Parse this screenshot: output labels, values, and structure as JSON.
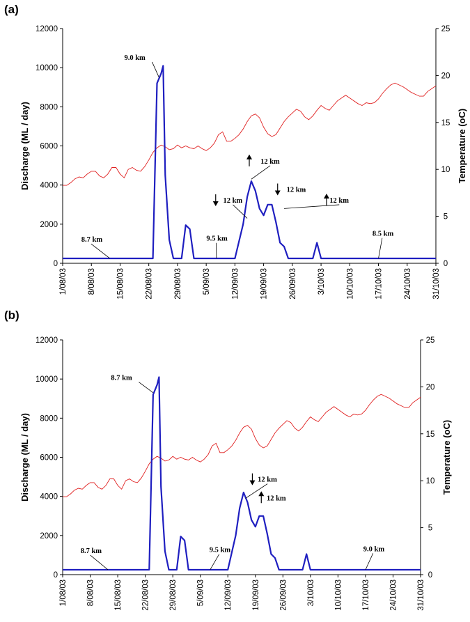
{
  "colors": {
    "discharge": "#1f1fc0",
    "temperature": "#e02020",
    "axis": "#000000"
  },
  "chart_data": [
    {
      "type": "line",
      "panel_label": "(a)",
      "xlabel": "",
      "ylabel_left": "Discharge (ML / day)",
      "ylabel_right": "Temperature (oC)",
      "ylim_left": [
        0,
        12000
      ],
      "ylim_right": [
        0,
        25
      ],
      "yticks_left": [
        "0",
        "2000",
        "4000",
        "6000",
        "8000",
        "10000",
        "12000"
      ],
      "yticks_right": [
        "0",
        "5",
        "10",
        "15",
        "20",
        "25"
      ],
      "x_range": [
        0,
        91
      ],
      "xtick_labels": [
        "1/08/03",
        "8/08/03",
        "15/08/03",
        "22/08/03",
        "29/08/03",
        "5/09/03",
        "12/09/03",
        "19/09/03",
        "26/09/03",
        "3/10/03",
        "10/10/03",
        "17/10/03",
        "24/10/03",
        "31/10/03"
      ],
      "series": [
        {
          "name": "Discharge",
          "axis": "left",
          "x": [
            0,
            22,
            23,
            24,
            24.5,
            25,
            26,
            27,
            28,
            29,
            30,
            31,
            31.5,
            32,
            33,
            37,
            42,
            44,
            45,
            46,
            47,
            48,
            49,
            50,
            51,
            52,
            53,
            54,
            55,
            56,
            61,
            62,
            63,
            91
          ],
          "values": [
            250,
            250,
            9200,
            9700,
            10100,
            4500,
            1200,
            250,
            250,
            250,
            1950,
            1750,
            1000,
            250,
            250,
            250,
            250,
            2000,
            3400,
            4200,
            3700,
            2800,
            2450,
            3000,
            3000,
            2100,
            1050,
            850,
            250,
            250,
            250,
            1050,
            250,
            250
          ]
        },
        {
          "name": "Temperature",
          "axis": "right",
          "values": [
            8.3,
            8.3,
            8.6,
            9.0,
            9.2,
            9.1,
            9.5,
            9.8,
            9.8,
            9.3,
            9.1,
            9.5,
            10.2,
            10.2,
            9.5,
            9.1,
            10.0,
            10.2,
            9.9,
            9.8,
            10.3,
            11.0,
            11.8,
            12.3,
            12.6,
            12.4,
            12.1,
            12.2,
            12.6,
            12.3,
            12.5,
            12.3,
            12.2,
            12.5,
            12.2,
            12.0,
            12.3,
            12.8,
            13.7,
            14.0,
            13.0,
            13.0,
            13.3,
            13.7,
            14.3,
            15.1,
            15.7,
            15.9,
            15.5,
            14.5,
            13.8,
            13.5,
            13.7,
            14.4,
            15.1,
            15.6,
            16.0,
            16.4,
            16.2,
            15.6,
            15.3,
            15.7,
            16.3,
            16.8,
            16.5,
            16.3,
            16.8,
            17.3,
            17.6,
            17.9,
            17.6,
            17.3,
            17.0,
            16.8,
            17.1,
            17.0,
            17.1,
            17.5,
            18.1,
            18.6,
            19.0,
            19.2,
            19.0,
            18.8,
            18.5,
            18.2,
            18.0,
            17.8,
            17.8,
            18.3,
            18.6,
            18.9
          ]
        }
      ],
      "annotations": [
        {
          "text": "9.0 km",
          "ax": 0.165,
          "ay": 10400,
          "tx": 23.5,
          "ty": 9500,
          "anchor": "end"
        },
        {
          "text": "8.7 km",
          "ax": 0.05,
          "ay": 1100,
          "tx": 11.5,
          "ty": 250,
          "anchor": "start"
        },
        {
          "text": "9.5 km",
          "ax": 0.385,
          "ay": 1150,
          "tx": 37.5,
          "ty": 250,
          "anchor": "start"
        },
        {
          "text": "8.5 km",
          "ax": 0.83,
          "ay": 1400,
          "tx": 77,
          "ty": 250,
          "anchor": "start"
        },
        {
          "text": "12 km",
          "ax": 0.53,
          "ay": 5100,
          "tx": 46,
          "ty": 4300,
          "anchor": "start"
        },
        {
          "text": "12 km",
          "ax": 0.43,
          "ay": 3100,
          "tx": 45,
          "ty": 2300,
          "anchor": "start"
        },
        {
          "text": "12 km",
          "ax": 0.6,
          "ay": 3650,
          "tx": 0,
          "ty": 0,
          "anchor": "start"
        },
        {
          "text": "12 km",
          "ax": 0.715,
          "ay": 3100,
          "tx": 54,
          "ty": 2800,
          "anchor": "start"
        }
      ],
      "arrows": [
        {
          "direction": "up",
          "ax": 0.5,
          "ay": 5100
        },
        {
          "direction": "down",
          "ax": 0.41,
          "ay": 3100
        },
        {
          "direction": "down",
          "ax": 0.576,
          "ay": 3650
        },
        {
          "direction": "up",
          "ax": 0.707,
          "ay": 3100
        }
      ]
    },
    {
      "type": "line",
      "panel_label": "(b)",
      "xlabel": "",
      "ylabel_left": "Discharge (ML / day)",
      "ylabel_right": "Temperature (oC)",
      "ylim_left": [
        0,
        12000
      ],
      "ylim_right": [
        0,
        25
      ],
      "yticks_left": [
        "0",
        "2000",
        "4000",
        "6000",
        "8000",
        "10000",
        "12000"
      ],
      "yticks_right": [
        "0",
        "5",
        "10",
        "15",
        "20",
        "25"
      ],
      "x_range": [
        0,
        91
      ],
      "xtick_labels": [
        "1/08/03",
        "8/08/03",
        "15/08/03",
        "22/08/03",
        "29/08/03",
        "5/09/03",
        "12/09/03",
        "19/09/03",
        "26/09/03",
        "3/10/03",
        "10/10/03",
        "17/10/03",
        "24/10/03",
        "31/10/03"
      ],
      "series": [
        {
          "name": "Discharge",
          "axis": "left",
          "x": [
            0,
            22,
            23,
            24,
            24.5,
            25,
            26,
            27,
            28,
            29,
            30,
            31,
            31.5,
            32,
            33,
            37,
            42,
            44,
            45,
            46,
            47,
            48,
            49,
            50,
            51,
            52,
            53,
            54,
            55,
            56,
            61,
            62,
            63,
            91
          ],
          "values": [
            250,
            250,
            9200,
            9700,
            10100,
            4500,
            1200,
            250,
            250,
            250,
            1950,
            1750,
            1000,
            250,
            250,
            250,
            250,
            2000,
            3400,
            4200,
            3700,
            2800,
            2450,
            3000,
            3000,
            2100,
            1050,
            850,
            250,
            250,
            250,
            1050,
            250,
            250
          ]
        },
        {
          "name": "Temperature",
          "axis": "right",
          "values": [
            8.3,
            8.3,
            8.6,
            9.0,
            9.2,
            9.1,
            9.5,
            9.8,
            9.8,
            9.3,
            9.1,
            9.5,
            10.2,
            10.2,
            9.5,
            9.1,
            10.0,
            10.2,
            9.9,
            9.8,
            10.3,
            11.0,
            11.8,
            12.3,
            12.6,
            12.4,
            12.1,
            12.2,
            12.6,
            12.3,
            12.5,
            12.3,
            12.2,
            12.5,
            12.2,
            12.0,
            12.3,
            12.8,
            13.7,
            14.0,
            13.0,
            13.0,
            13.3,
            13.7,
            14.3,
            15.1,
            15.7,
            15.9,
            15.5,
            14.5,
            13.8,
            13.5,
            13.7,
            14.4,
            15.1,
            15.6,
            16.0,
            16.4,
            16.2,
            15.6,
            15.3,
            15.7,
            16.3,
            16.8,
            16.5,
            16.3,
            16.8,
            17.3,
            17.6,
            17.9,
            17.6,
            17.3,
            17.0,
            16.8,
            17.1,
            17.0,
            17.1,
            17.5,
            18.1,
            18.6,
            19.0,
            19.2,
            19.0,
            18.8,
            18.5,
            18.2,
            18.0,
            17.8,
            17.8,
            18.3,
            18.6,
            18.9
          ]
        }
      ],
      "annotations": [
        {
          "text": "8.7 km",
          "ax": 0.135,
          "ay": 9950,
          "tx": 23,
          "ty": 9300,
          "anchor": "end"
        },
        {
          "text": "8.7 km",
          "ax": 0.05,
          "ay": 1100,
          "tx": 11.5,
          "ty": 250,
          "anchor": "start"
        },
        {
          "text": "9.5 km",
          "ax": 0.41,
          "ay": 1150,
          "tx": 37.5,
          "ty": 250,
          "anchor": "start"
        },
        {
          "text": "9.0 km",
          "ax": 0.84,
          "ay": 1200,
          "tx": 77,
          "ty": 250,
          "anchor": "start"
        },
        {
          "text": "12 km",
          "ax": 0.545,
          "ay": 4750,
          "tx": 46.5,
          "ty": 3900,
          "anchor": "start"
        },
        {
          "text": "12 km",
          "ax": 0.57,
          "ay": 3800,
          "tx": 0,
          "ty": 0,
          "anchor": "start"
        }
      ],
      "arrows": [
        {
          "direction": "down",
          "ax": 0.53,
          "ay": 4750
        },
        {
          "direction": "up",
          "ax": 0.555,
          "ay": 3800
        }
      ]
    }
  ],
  "labels": {
    "a_panel": "(a)",
    "b_panel": "(b)",
    "a_ylabel_left": "Discharge (ML / day)",
    "a_ylabel_right": "Temperature (oC)",
    "b_ylabel_left": "Discharge (ML / day)",
    "b_ylabel_right": "Temperature (oC)"
  }
}
